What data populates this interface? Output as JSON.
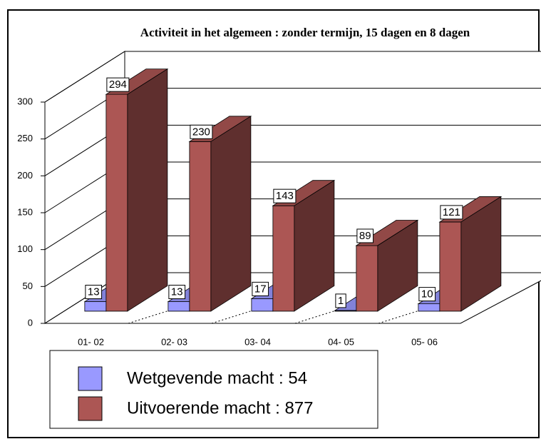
{
  "chart_data": {
    "type": "bar3d",
    "title": "Activiteit in het algemeen : zonder termijn, 15 dagen en 8 dagen",
    "categories": [
      "01- 02",
      "02- 03",
      "03- 04",
      "04- 05",
      "05- 06"
    ],
    "series": [
      {
        "name": "Wetgevende macht : 54",
        "color": "#9999ff",
        "values": [
          13,
          13,
          17,
          1,
          10
        ]
      },
      {
        "name": "Uitvoerende macht : 877",
        "color": "#ac5654",
        "values": [
          294,
          230,
          143,
          89,
          121
        ]
      }
    ],
    "ylim": [
      0,
      300
    ],
    "yticks": [
      0,
      50,
      100,
      150,
      200,
      250,
      300
    ],
    "grid": true
  }
}
